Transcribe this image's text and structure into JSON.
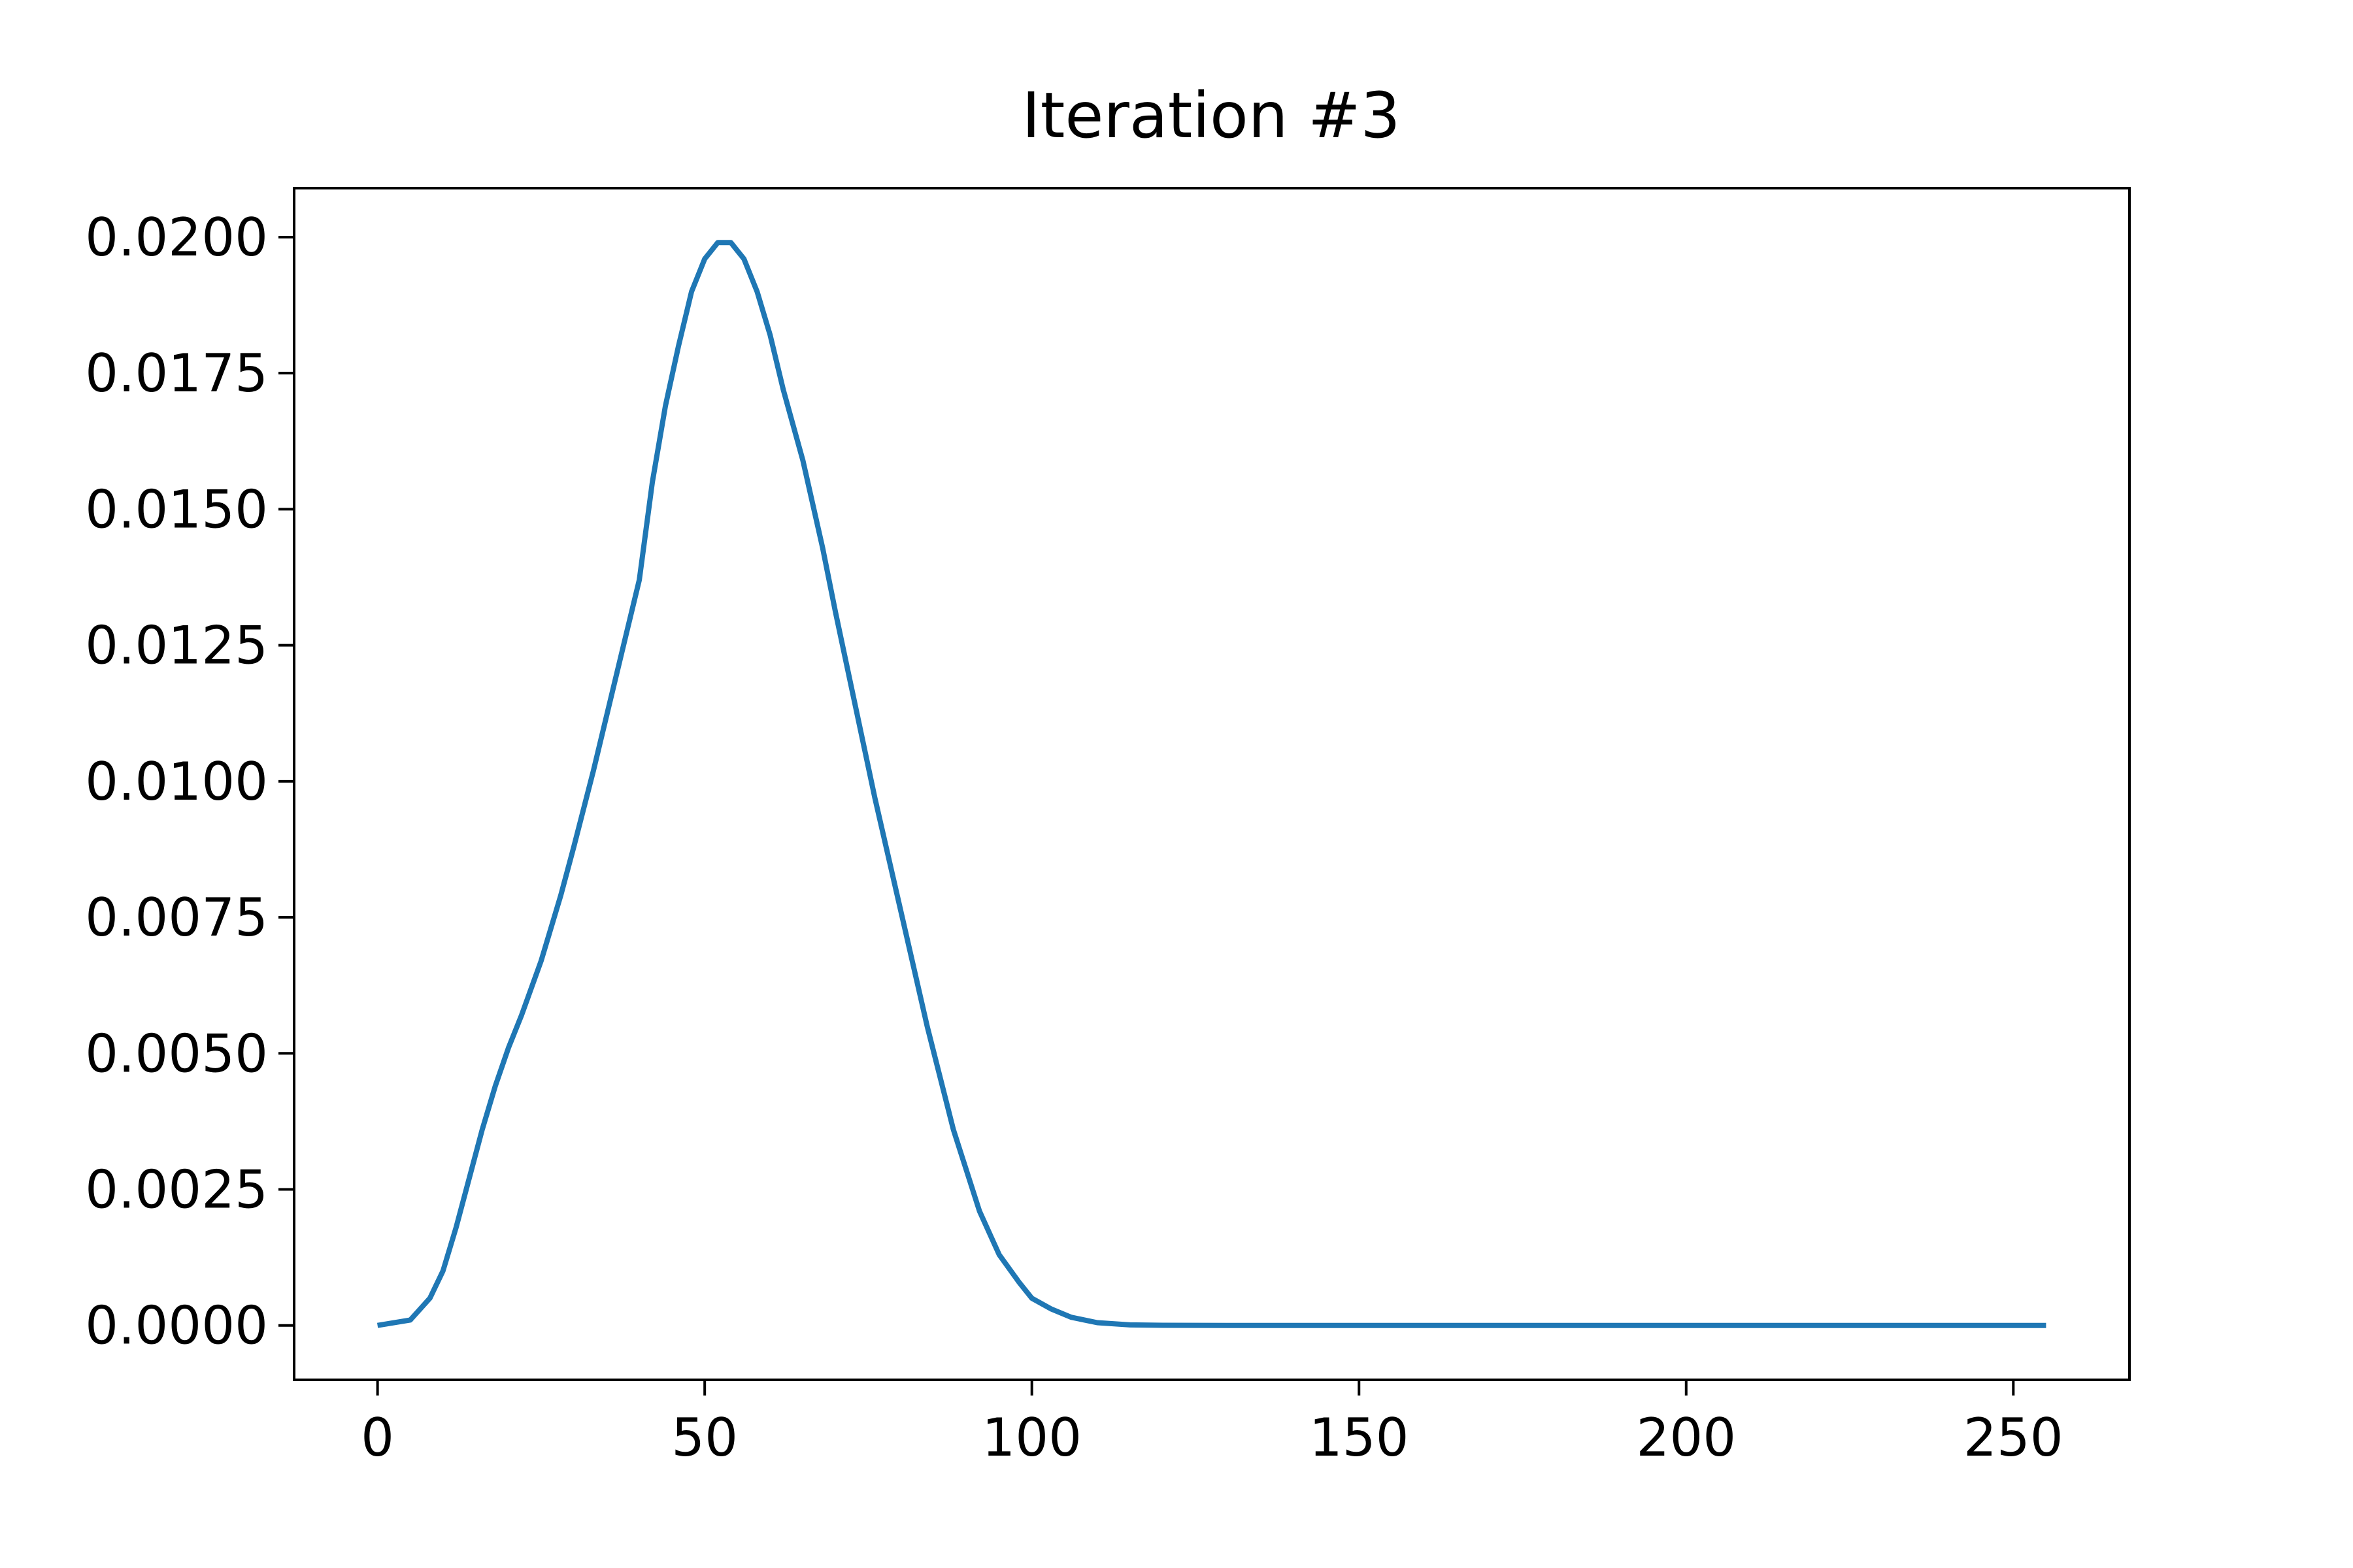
{
  "chart_data": {
    "type": "line",
    "title": "Iteration #3",
    "xlabel": "",
    "ylabel": "",
    "xlim": [
      -12.75,
      267.75
    ],
    "ylim": [
      -0.001,
      0.0209
    ],
    "x_ticks": [
      0,
      50,
      100,
      150,
      200,
      250
    ],
    "x_tick_labels": [
      "0",
      "50",
      "100",
      "150",
      "200",
      "250"
    ],
    "y_ticks": [
      0,
      0.0025,
      0.005,
      0.0075,
      0.01,
      0.0125,
      0.015,
      0.0175,
      0.02
    ],
    "y_tick_labels": [
      "0.0000",
      "0.0025",
      "0.0050",
      "0.0075",
      "0.0100",
      "0.0125",
      "0.0150",
      "0.0175",
      "0.0200"
    ],
    "grid": false,
    "legend": "none",
    "colors": {
      "line": "#1f77b4",
      "axes": "#000000",
      "background": "#ffffff"
    },
    "series": [
      {
        "x": [
          0,
          5,
          8,
          10,
          12,
          14,
          16,
          18,
          20,
          22,
          25,
          28,
          30,
          33,
          36,
          38,
          40,
          42,
          44,
          46,
          48,
          50,
          52,
          54,
          56,
          58,
          60,
          62,
          65,
          68,
          70,
          73,
          76,
          80,
          84,
          88,
          92,
          95,
          98,
          100,
          103,
          106,
          110,
          115,
          120,
          130,
          140,
          150,
          200,
          255
        ],
        "y": [
          0,
          0.0001,
          0.0005,
          0.001,
          0.0018,
          0.0027,
          0.0036,
          0.0044,
          0.0051,
          0.0057,
          0.0067,
          0.0079,
          0.0088,
          0.0102,
          0.0117,
          0.0127,
          0.0137,
          0.0155,
          0.0169,
          0.018,
          0.019,
          0.0196,
          0.0199,
          0.0199,
          0.0196,
          0.019,
          0.0182,
          0.0172,
          0.0159,
          0.0143,
          0.0131,
          0.0114,
          0.0097,
          0.0076,
          0.0055,
          0.0036,
          0.0021,
          0.0013,
          0.0008,
          0.0005,
          0.0003,
          0.00015,
          5e-05,
          1e-05,
          3e-06,
          0,
          0,
          0,
          0,
          0
        ]
      }
    ]
  }
}
